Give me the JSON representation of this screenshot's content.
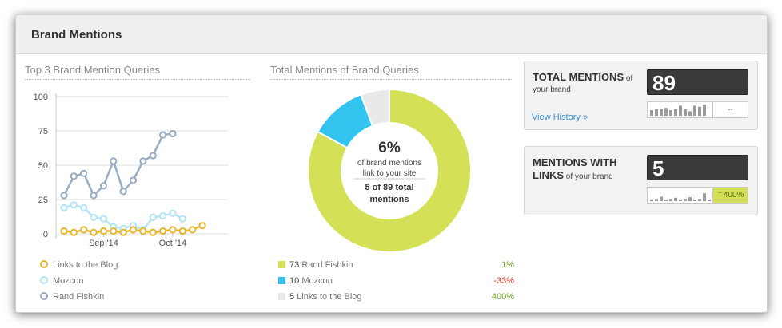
{
  "card": {
    "title": "Brand Mentions"
  },
  "line_panel": {
    "title": "Top 3 Brand Mention Queries",
    "legend": [
      {
        "label": "Links to the Blog",
        "color": "#e8b730"
      },
      {
        "label": "Mozcon",
        "color": "#b5e4f5"
      },
      {
        "label": "Rand Fishkin",
        "color": "#9aabc4"
      }
    ]
  },
  "donut_panel": {
    "title": "Total Mentions of Brand Queries",
    "center": {
      "percent": "6%",
      "line1": "of brand mentions",
      "line2": "link to your site",
      "line3": "5 of 89 total",
      "line4": "mentions"
    },
    "legend": [
      {
        "count": "73",
        "label": "Rand Fishkin",
        "change": "1%",
        "color": "#d4e157",
        "change_color": "#6aa51f"
      },
      {
        "count": "10",
        "label": "Mozcon",
        "change": "-33%",
        "color": "#33c3ef",
        "change_color": "#d63a2a"
      },
      {
        "count": "5",
        "label": "Links to the Blog",
        "change": "400%",
        "color": "#e9e9e9",
        "change_color": "#6aa51f"
      }
    ]
  },
  "total_mentions": {
    "title": "TOTAL MENTIONS",
    "title_suffix": "of",
    "subtitle": "your brand",
    "value": "89",
    "change": "--",
    "link": "View History »",
    "spark_values": [
      0.5,
      0.6,
      0.6,
      0.7,
      0.5,
      0.6,
      0.9,
      0.6,
      0.4,
      0.9,
      0.8,
      1.0
    ]
  },
  "mentions_links": {
    "title_line1": "MENTIONS WITH",
    "title_line2": "LINKS",
    "subtitle": "of your brand",
    "value": "5",
    "change": "400%",
    "spark_values": [
      0.15,
      0.2,
      0.4,
      0.15,
      0.2,
      0.3,
      0.15,
      0.2,
      0.35,
      0.15,
      0.2,
      0.7,
      0.15,
      1.0
    ]
  },
  "chart_data": [
    {
      "type": "line",
      "title": "Top 3 Brand Mention Queries",
      "ylim": [
        0,
        100
      ],
      "yticks": [
        0,
        25,
        50,
        75,
        100
      ],
      "xtick_labels": [
        "Sep '14",
        "Oct '14"
      ],
      "xtick_index": [
        4,
        11
      ],
      "grid": true,
      "legend_placement": "bottom",
      "series": [
        {
          "name": "Links to the Blog",
          "color": "#e8b730",
          "values": [
            2,
            1,
            3,
            1,
            2,
            2,
            1,
            3,
            2,
            1,
            2,
            3,
            2,
            3,
            6
          ]
        },
        {
          "name": "Mozcon",
          "color": "#b5e4f5",
          "values": [
            19,
            21,
            19,
            12,
            11,
            5,
            4,
            6,
            3,
            12,
            13,
            15,
            11
          ]
        },
        {
          "name": "Rand Fishkin",
          "color": "#9aabc4",
          "values": [
            28,
            42,
            44,
            28,
            35,
            53,
            31,
            39,
            53,
            57,
            72,
            73
          ]
        }
      ]
    },
    {
      "type": "pie",
      "title": "Total Mentions of Brand Queries",
      "donut": true,
      "categories": [
        "Rand Fishkin",
        "Mozcon",
        "Links to the Blog"
      ],
      "values": [
        73,
        10,
        5
      ],
      "colors": [
        "#d4e157",
        "#33c3ef",
        "#e9e9e9"
      ]
    }
  ]
}
